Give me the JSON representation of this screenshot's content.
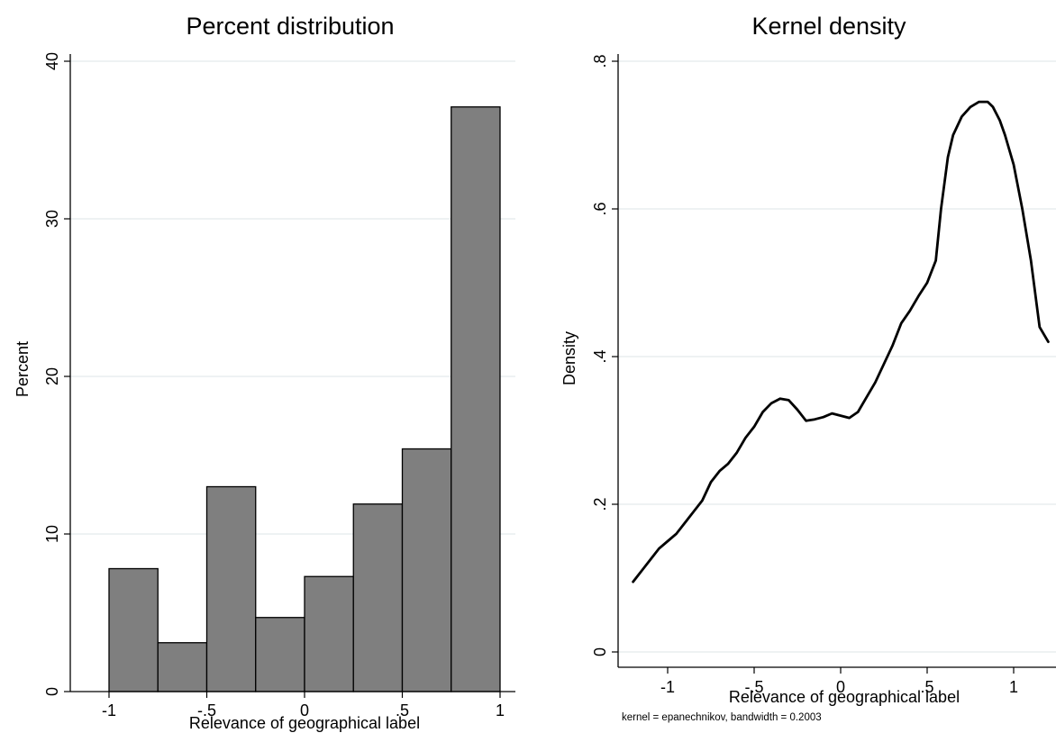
{
  "chart_data": [
    {
      "type": "bar",
      "title": "Percent distribution",
      "xlabel": "Relevance of geographical label",
      "ylabel": "Percent",
      "xlim": [
        -1,
        1
      ],
      "ylim": [
        0,
        40
      ],
      "x_ticks": [
        -1,
        -0.5,
        0,
        0.5,
        1
      ],
      "x_tick_labels": [
        "-1",
        "-.5",
        "0",
        ".5",
        "1"
      ],
      "y_ticks": [
        0,
        10,
        20,
        30,
        40
      ],
      "y_tick_labels": [
        "0",
        "10",
        "20",
        "30",
        "40"
      ],
      "grid": true,
      "bin_edges": [
        -1,
        -0.75,
        -0.5,
        -0.25,
        0,
        0.25,
        0.5,
        0.75,
        1
      ],
      "values": [
        7.8,
        3.1,
        13.0,
        4.7,
        7.3,
        11.9,
        15.4,
        37.1
      ],
      "bar_color": "#7f7f7f",
      "edge_color": "#000000"
    },
    {
      "type": "line",
      "title": "Kernel density",
      "xlabel": "Relevance of geographical label",
      "ylabel": "Density",
      "note": "kernel = epanechnikov, bandwidth = 0.2003",
      "xlim": [
        -1.25,
        1.25
      ],
      "ylim": [
        0,
        0.8
      ],
      "x_ticks": [
        -1,
        -0.5,
        0,
        0.5,
        1
      ],
      "x_tick_labels": [
        "-1",
        "-.5",
        "0",
        ".5",
        "1"
      ],
      "y_ticks": [
        0,
        0.2,
        0.4,
        0.6,
        0.8
      ],
      "y_tick_labels": [
        "0",
        ".2",
        ".4",
        ".6",
        ".8"
      ],
      "grid": true,
      "line_color": "#000000",
      "x": [
        -1.2,
        -1.15,
        -1.1,
        -1.05,
        -1.0,
        -0.95,
        -0.9,
        -0.85,
        -0.8,
        -0.75,
        -0.7,
        -0.65,
        -0.6,
        -0.55,
        -0.5,
        -0.45,
        -0.4,
        -0.35,
        -0.3,
        -0.25,
        -0.2,
        -0.15,
        -0.1,
        -0.05,
        0.0,
        0.05,
        0.1,
        0.15,
        0.2,
        0.25,
        0.3,
        0.35,
        0.4,
        0.45,
        0.5,
        0.55,
        0.58,
        0.62,
        0.65,
        0.7,
        0.75,
        0.8,
        0.85,
        0.88,
        0.92,
        0.95,
        1.0,
        1.05,
        1.1,
        1.15,
        1.2
      ],
      "y": [
        0.095,
        0.11,
        0.125,
        0.14,
        0.15,
        0.16,
        0.175,
        0.19,
        0.205,
        0.23,
        0.245,
        0.255,
        0.27,
        0.29,
        0.305,
        0.325,
        0.337,
        0.343,
        0.341,
        0.328,
        0.313,
        0.315,
        0.318,
        0.323,
        0.32,
        0.317,
        0.325,
        0.345,
        0.365,
        0.39,
        0.415,
        0.445,
        0.462,
        0.482,
        0.5,
        0.53,
        0.6,
        0.67,
        0.7,
        0.725,
        0.738,
        0.745,
        0.745,
        0.738,
        0.72,
        0.7,
        0.66,
        0.6,
        0.53,
        0.44,
        0.42
      ]
    }
  ]
}
